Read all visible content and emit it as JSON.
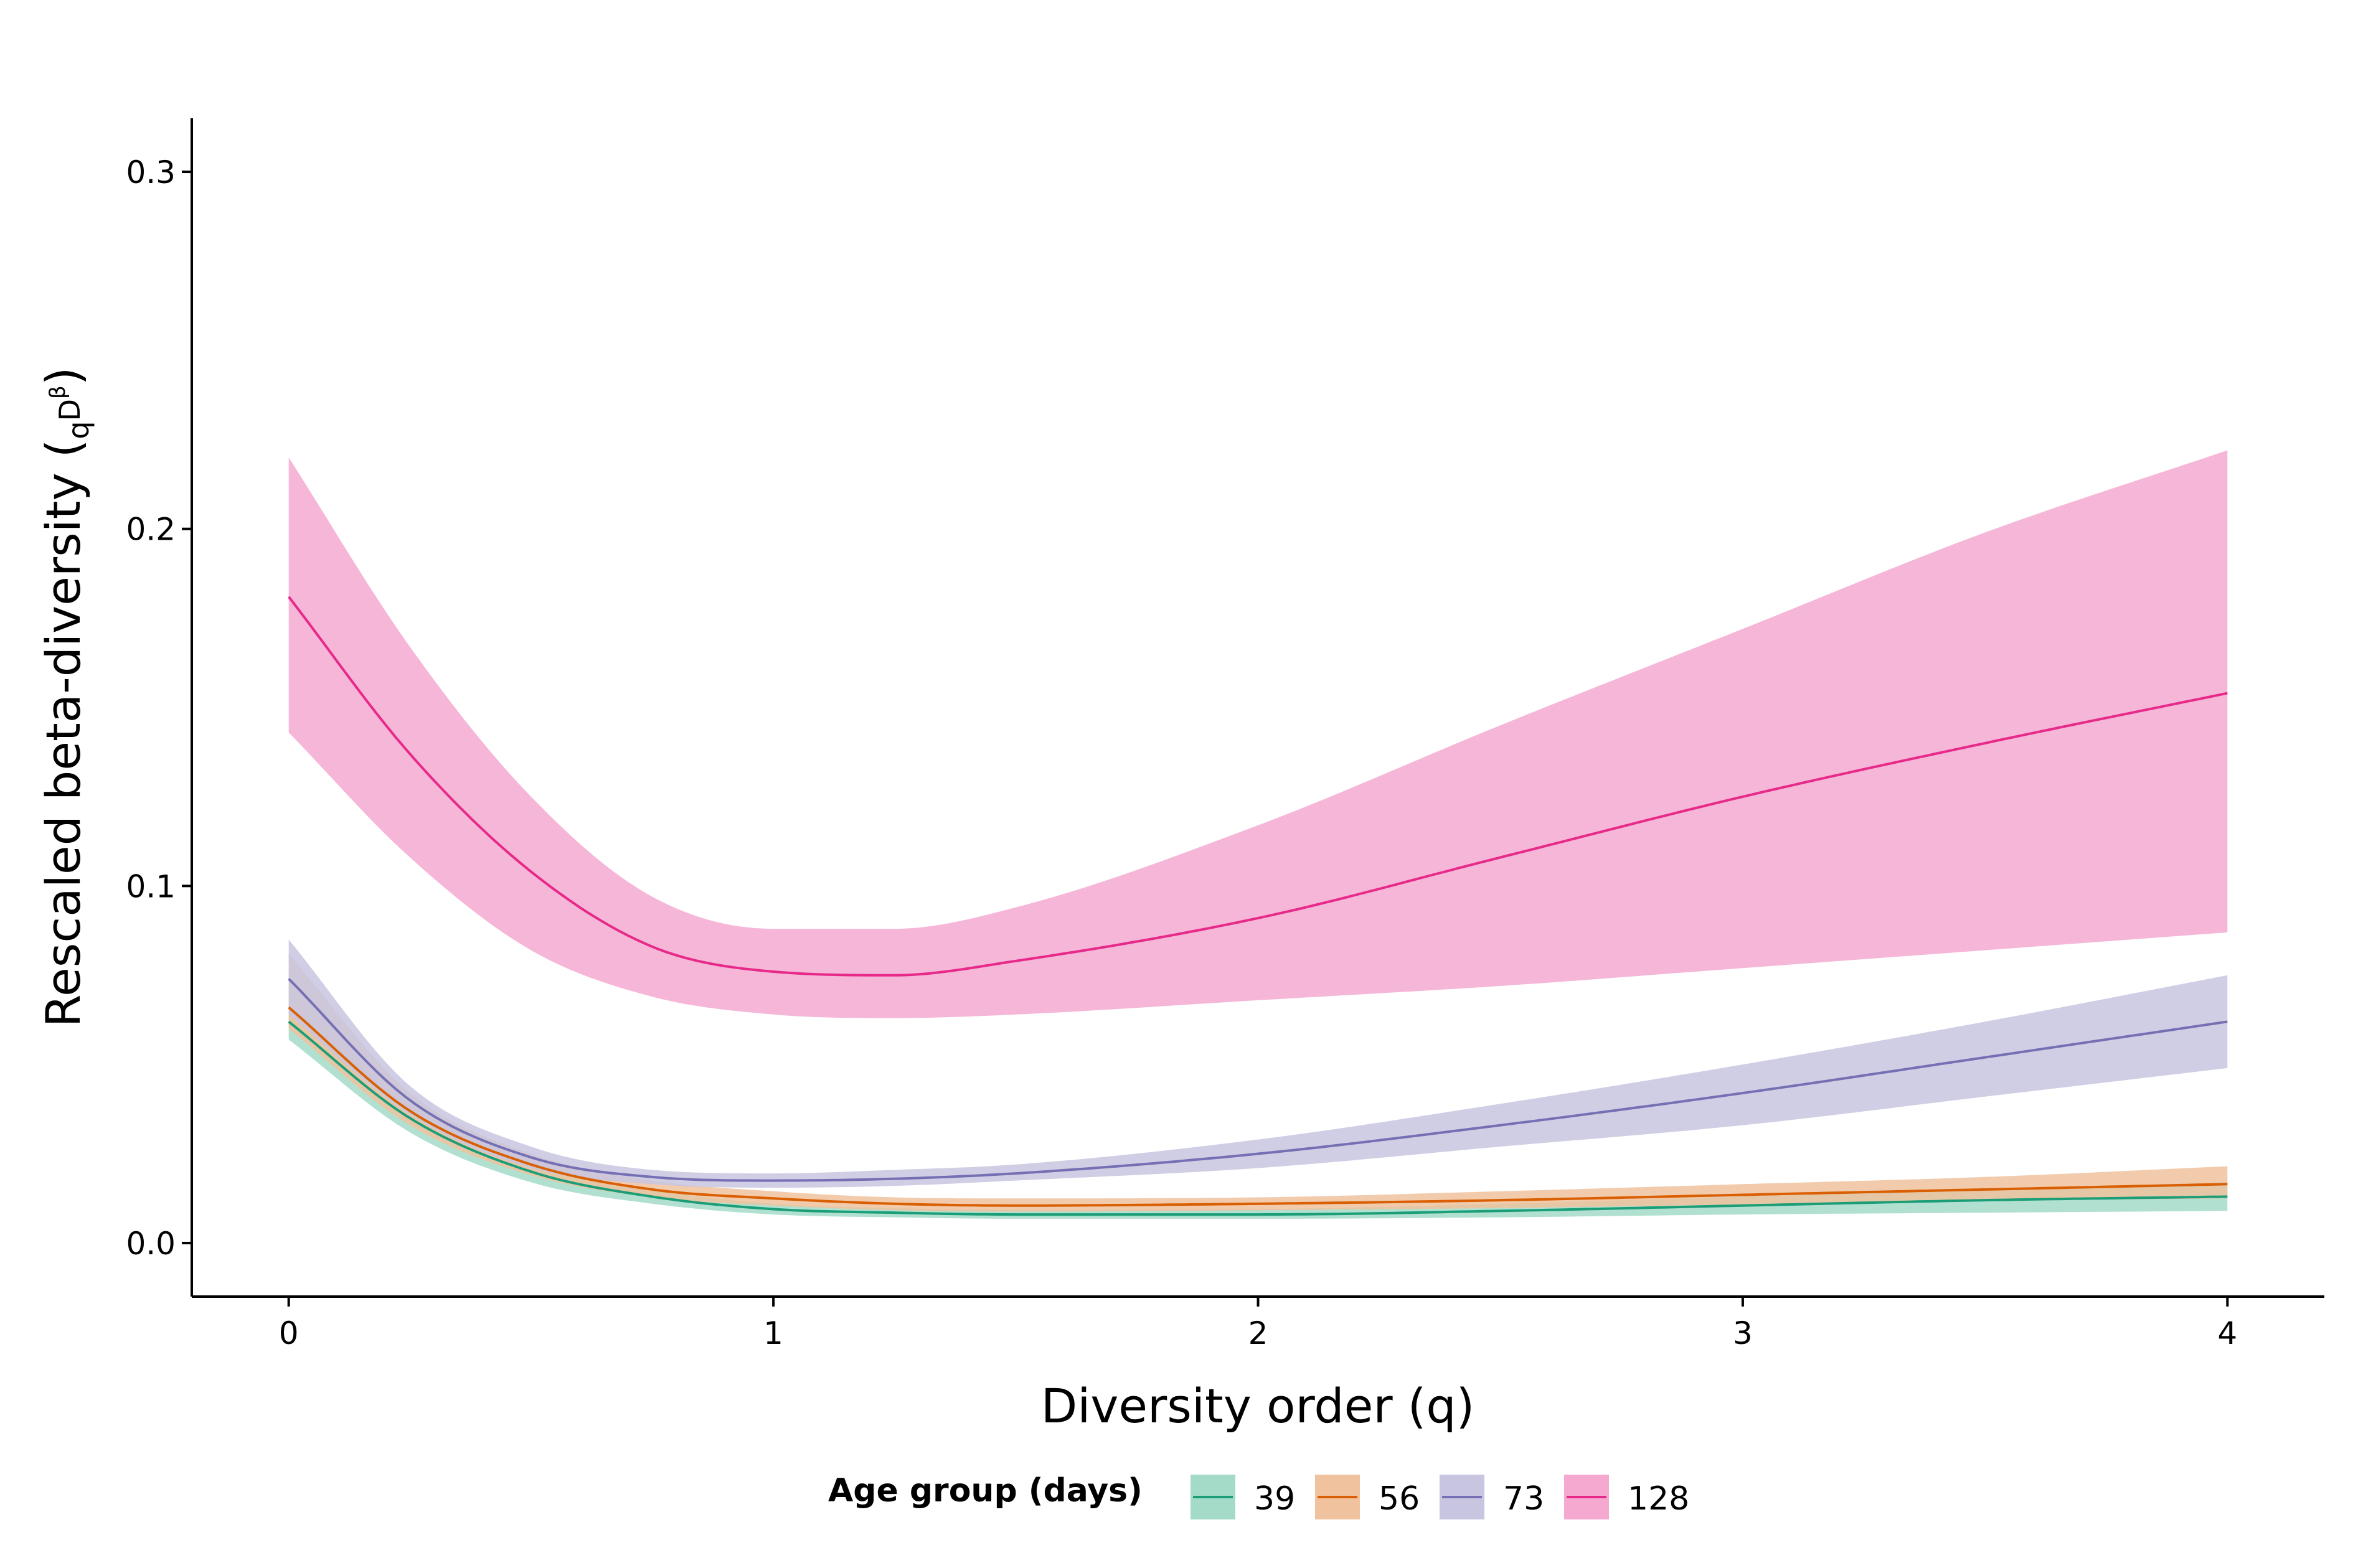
{
  "chart_data": {
    "type": "line",
    "xlabel": "Diversity order (q)",
    "ylabel": {
      "main": "Rescaled beta-diversity (",
      "sub": "q",
      "base": "D",
      "sup": "β",
      "close": ")"
    },
    "xlim": [
      -0.2,
      4.2
    ],
    "ylim": [
      -0.015,
      0.315
    ],
    "x_ticks": [
      0,
      1,
      2,
      3,
      4
    ],
    "x_tick_labels": [
      "0",
      "1",
      "2",
      "3",
      "4"
    ],
    "y_ticks": [
      0.0,
      0.1,
      0.2,
      0.3
    ],
    "y_tick_labels": [
      "0.0",
      "0.1",
      "0.2",
      "0.3"
    ],
    "grid": false,
    "legend": {
      "title": "Age group (days)",
      "position": "bottom"
    },
    "x": [
      0,
      0.25,
      0.5,
      0.75,
      1,
      1.25,
      1.5,
      2,
      2.5,
      3,
      3.5,
      4
    ],
    "series": [
      {
        "name": "39",
        "color": "#1b9e77",
        "fill": "#a3dbc8",
        "values": [
          0.062,
          0.035,
          0.02,
          0.013,
          0.0095,
          0.0085,
          0.008,
          0.008,
          0.009,
          0.0105,
          0.012,
          0.013
        ],
        "lower": [
          0.057,
          0.031,
          0.017,
          0.011,
          0.008,
          0.0072,
          0.0068,
          0.0068,
          0.0072,
          0.008,
          0.0085,
          0.009
        ],
        "upper": [
          0.067,
          0.039,
          0.023,
          0.015,
          0.011,
          0.0098,
          0.0093,
          0.0095,
          0.011,
          0.013,
          0.015,
          0.017
        ]
      },
      {
        "name": "56",
        "color": "#d95f02",
        "fill": "#f0c29e",
        "values": [
          0.066,
          0.037,
          0.022,
          0.015,
          0.0125,
          0.011,
          0.0105,
          0.011,
          0.012,
          0.0135,
          0.015,
          0.0165
        ],
        "lower": [
          0.06,
          0.033,
          0.019,
          0.0128,
          0.0105,
          0.0092,
          0.0088,
          0.0092,
          0.0098,
          0.0108,
          0.0118,
          0.0125
        ],
        "upper": [
          0.081,
          0.042,
          0.025,
          0.0175,
          0.0145,
          0.0128,
          0.0125,
          0.0128,
          0.0145,
          0.0165,
          0.0185,
          0.0215
        ]
      },
      {
        "name": "73",
        "color": "#7570b3",
        "fill": "#c8c5e1",
        "values": [
          0.074,
          0.04,
          0.024,
          0.0185,
          0.0175,
          0.018,
          0.0195,
          0.025,
          0.033,
          0.042,
          0.052,
          0.062
        ],
        "lower": [
          0.064,
          0.036,
          0.021,
          0.0165,
          0.0155,
          0.016,
          0.0175,
          0.021,
          0.027,
          0.033,
          0.041,
          0.049
        ],
        "upper": [
          0.085,
          0.044,
          0.027,
          0.0205,
          0.0195,
          0.0205,
          0.022,
          0.029,
          0.039,
          0.05,
          0.062,
          0.075
        ]
      },
      {
        "name": "128",
        "color": "#e7298a",
        "fill": "#f5a9d0",
        "values": [
          0.181,
          0.137,
          0.104,
          0.083,
          0.076,
          0.075,
          0.079,
          0.091,
          0.108,
          0.125,
          0.14,
          0.154
        ],
        "lower": [
          0.143,
          0.108,
          0.082,
          0.069,
          0.064,
          0.063,
          0.064,
          0.068,
          0.072,
          0.077,
          0.082,
          0.087
        ],
        "upper": [
          0.22,
          0.167,
          0.125,
          0.097,
          0.088,
          0.088,
          0.094,
          0.117,
          0.145,
          0.172,
          0.199,
          0.222
        ]
      }
    ]
  }
}
